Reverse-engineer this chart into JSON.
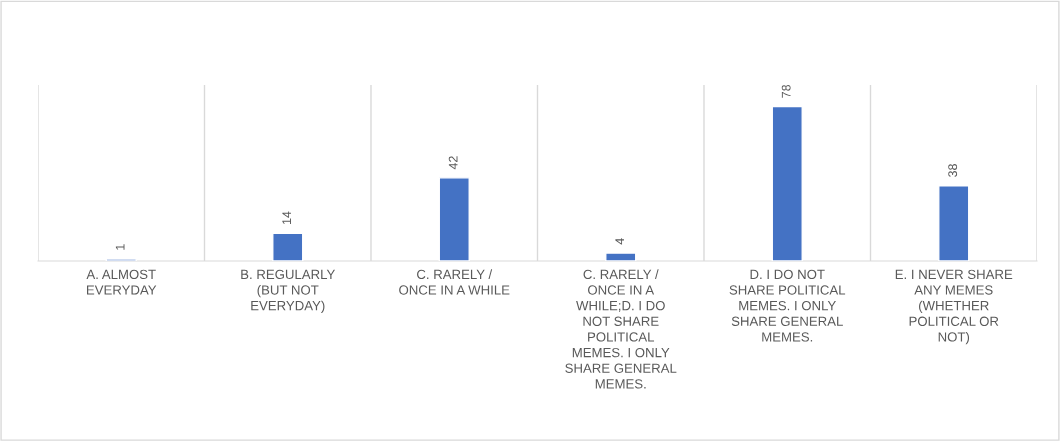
{
  "chart_data": {
    "type": "bar",
    "categories": [
      "A. ALMOST\nEVERYDAY",
      "B. REGULARLY\n(BUT NOT\nEVERYDAY)",
      "C. RARELY /\nONCE IN A WHILE",
      "C. RARELY /\nONCE IN A\nWHILE;D. I DO\nNOT SHARE\nPOLITICAL\nMEMES. I ONLY\nSHARE GENERAL\nMEMES.",
      "D. I DO NOT\nSHARE POLITICAL\nMEMES. I ONLY\nSHARE GENERAL\nMEMES.",
      "E. I NEVER SHARE\nANY MEMES\n(WHETHER\nPOLITICAL OR\nNOT)"
    ],
    "values": [
      1,
      14,
      42,
      4,
      78,
      38
    ],
    "color": "#4472c4",
    "data_labels": true,
    "grid": "x"
  }
}
